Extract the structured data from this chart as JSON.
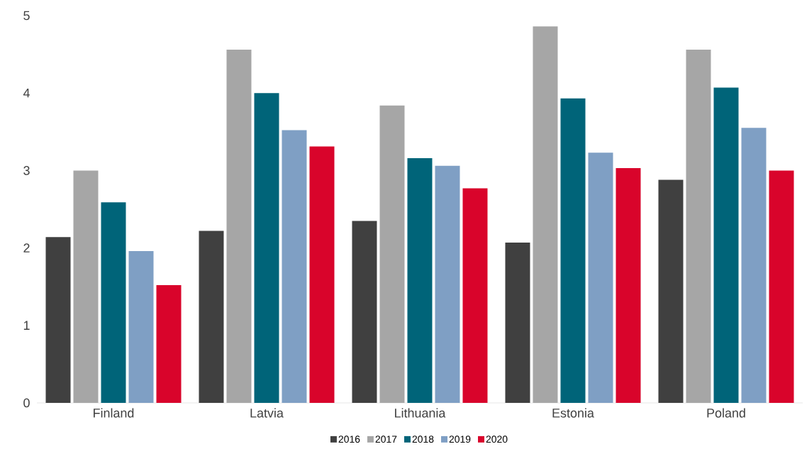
{
  "chart_data": {
    "type": "bar",
    "categories": [
      "Finland",
      "Latvia",
      "Lithuania",
      "Estonia",
      "Poland"
    ],
    "series": [
      {
        "name": "2016",
        "color": "#404040",
        "values": [
          2.14,
          2.22,
          2.35,
          2.07,
          2.88
        ]
      },
      {
        "name": "2017",
        "color": "#a6a6a6",
        "values": [
          3.0,
          4.56,
          3.84,
          4.86,
          4.56
        ]
      },
      {
        "name": "2018",
        "color": "#006479",
        "values": [
          2.59,
          4.0,
          3.16,
          3.93,
          4.07
        ]
      },
      {
        "name": "2019",
        "color": "#7f9fc4",
        "values": [
          1.96,
          3.52,
          3.06,
          3.23,
          3.55
        ]
      },
      {
        "name": "2020",
        "color": "#d9042b",
        "values": [
          1.52,
          3.31,
          2.77,
          3.03,
          3.0
        ]
      }
    ],
    "ylim": [
      0,
      5
    ],
    "yticks": [
      0,
      1,
      2,
      3,
      4,
      5
    ],
    "grid": false,
    "legend": "bottom"
  }
}
